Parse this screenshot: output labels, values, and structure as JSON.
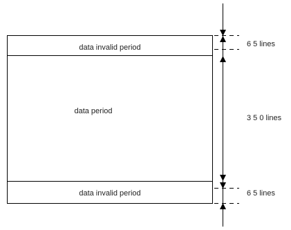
{
  "regions": {
    "top_label": "data invalid period",
    "middle_label": "data period",
    "bottom_label": "data invalid period"
  },
  "dimensions": {
    "top": "6 5 lines",
    "middle": "3 5 0 lines",
    "bottom": "6 5 lines"
  },
  "colors": {
    "stroke": "#000000",
    "text": "#222222"
  }
}
